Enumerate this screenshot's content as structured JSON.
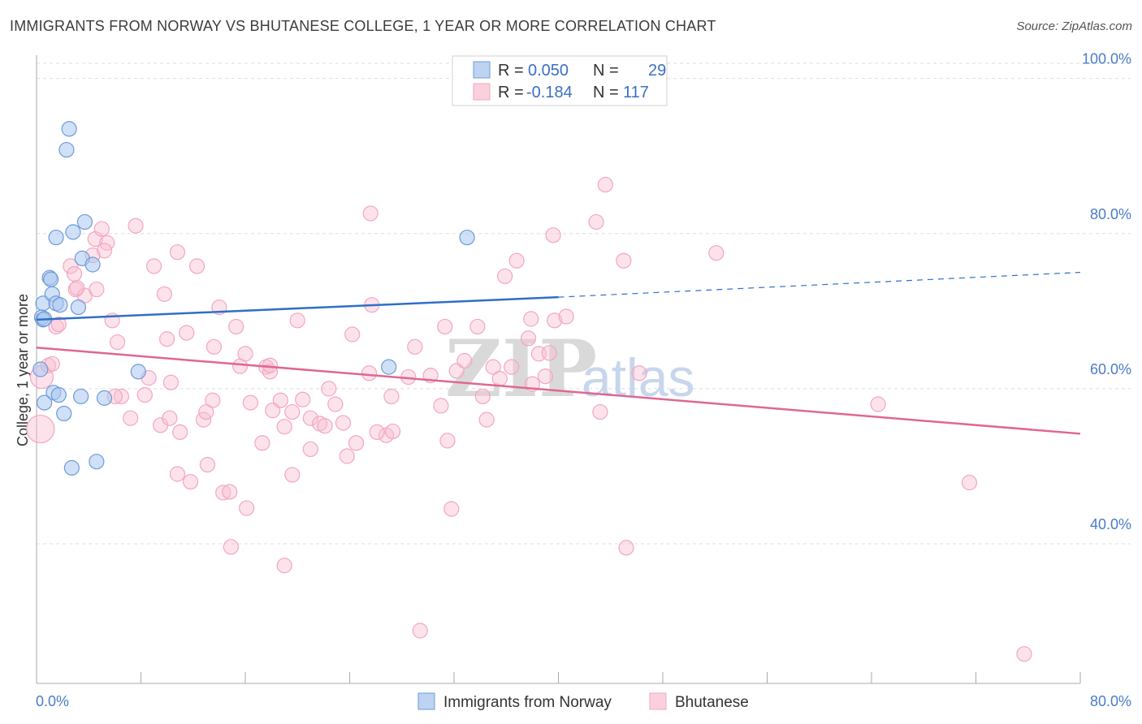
{
  "title": "IMMIGRANTS FROM NORWAY VS BHUTANESE COLLEGE, 1 YEAR OR MORE CORRELATION CHART",
  "source": "Source: ZipAtlas.com",
  "watermark": {
    "zip": "ZIP",
    "atlas": "atlas"
  },
  "legend": {
    "rows": [
      {
        "r_label": "R =",
        "r_value": "0.050",
        "n_label": "N =",
        "n_value": "29"
      },
      {
        "r_label": "R =",
        "r_value": "-0.184",
        "n_label": "N =",
        "n_value": "117"
      }
    ]
  },
  "bottom_legend": [
    "Immigrants from Norway",
    "Bhutanese"
  ],
  "chart_data": {
    "type": "scatter",
    "ylabel": "College, 1 year or more",
    "xlim": [
      0,
      80
    ],
    "ylim": [
      22,
      103
    ],
    "x_tick_labels": [
      "0.0%",
      "80.0%"
    ],
    "y_ticks": [
      40,
      60,
      80,
      100
    ],
    "y_tick_labels": [
      "40.0%",
      "60.0%",
      "80.0%",
      "100.0%"
    ],
    "grid": true,
    "legend_placement": "top-center",
    "colors": {
      "norway": "#6f9bd8",
      "bhutanese": "#f2a7bf",
      "norway_line": "#2f6fc8",
      "bhutanese_line": "#e06693"
    },
    "series": [
      {
        "name": "Immigrants from Norway",
        "color": "#6f9bd8",
        "trend": {
          "x": [
            0,
            40
          ],
          "y": [
            68.9,
            71.8
          ],
          "dashed_to": [
            80,
            75.0
          ]
        },
        "points": [
          [
            2.5,
            93.5
          ],
          [
            2.3,
            90.8
          ],
          [
            0.5,
            71.0
          ],
          [
            0.4,
            69.2
          ],
          [
            0.5,
            68.9
          ],
          [
            0.6,
            69.0
          ],
          [
            1.0,
            74.3
          ],
          [
            1.1,
            74.1
          ],
          [
            1.2,
            72.2
          ],
          [
            1.5,
            71.0
          ],
          [
            1.8,
            70.8
          ],
          [
            3.2,
            70.5
          ],
          [
            1.5,
            79.5
          ],
          [
            2.8,
            80.2
          ],
          [
            3.7,
            81.5
          ],
          [
            3.5,
            76.8
          ],
          [
            4.3,
            76.0
          ],
          [
            1.3,
            59.5
          ],
          [
            1.7,
            59.2
          ],
          [
            3.4,
            59.0
          ],
          [
            5.2,
            58.8
          ],
          [
            0.6,
            58.2
          ],
          [
            2.1,
            56.8
          ],
          [
            7.8,
            62.2
          ],
          [
            27.0,
            62.8
          ],
          [
            33.0,
            79.5
          ],
          [
            2.7,
            49.8
          ],
          [
            4.6,
            50.6
          ],
          [
            0.3,
            62.5
          ]
        ]
      },
      {
        "name": "Bhutanese",
        "color": "#f2a7bf",
        "trend": {
          "x": [
            0,
            80
          ],
          "y": [
            65.3,
            54.2
          ]
        },
        "points": [
          [
            0.3,
            54.8
          ],
          [
            0.4,
            61.5
          ],
          [
            0.9,
            63.0
          ],
          [
            1.2,
            63.2
          ],
          [
            1.5,
            68.0
          ],
          [
            1.7,
            68.3
          ],
          [
            2.6,
            75.8
          ],
          [
            2.9,
            74.8
          ],
          [
            3.0,
            72.8
          ],
          [
            4.5,
            79.3
          ],
          [
            5.0,
            80.6
          ],
          [
            5.4,
            78.8
          ],
          [
            5.2,
            77.8
          ],
          [
            4.3,
            77.2
          ],
          [
            3.7,
            72.0
          ],
          [
            4.6,
            72.8
          ],
          [
            5.8,
            68.8
          ],
          [
            6.2,
            66.0
          ],
          [
            7.6,
            81.0
          ],
          [
            9.0,
            75.8
          ],
          [
            9.8,
            72.2
          ],
          [
            10.0,
            66.4
          ],
          [
            6.5,
            59.0
          ],
          [
            7.2,
            56.2
          ],
          [
            8.3,
            59.2
          ],
          [
            8.6,
            61.4
          ],
          [
            9.5,
            55.3
          ],
          [
            10.2,
            56.2
          ],
          [
            10.3,
            60.8
          ],
          [
            11.0,
            54.4
          ],
          [
            10.8,
            77.6
          ],
          [
            11.5,
            67.2
          ],
          [
            12.3,
            75.8
          ],
          [
            12.8,
            56.0
          ],
          [
            13.5,
            58.5
          ],
          [
            13.1,
            50.2
          ],
          [
            13.6,
            65.4
          ],
          [
            14.0,
            70.5
          ],
          [
            13.0,
            57.0
          ],
          [
            15.3,
            68.0
          ],
          [
            15.6,
            62.9
          ],
          [
            16.0,
            64.5
          ],
          [
            16.4,
            58.2
          ],
          [
            17.3,
            53.0
          ],
          [
            17.6,
            62.8
          ],
          [
            17.9,
            62.2
          ],
          [
            18.1,
            57.2
          ],
          [
            18.7,
            58.5
          ],
          [
            19.0,
            55.1
          ],
          [
            19.6,
            57.0
          ],
          [
            20.0,
            68.8
          ],
          [
            20.4,
            58.6
          ],
          [
            21.0,
            52.2
          ],
          [
            21.0,
            56.2
          ],
          [
            21.7,
            55.5
          ],
          [
            22.1,
            55.2
          ],
          [
            22.4,
            60.0
          ],
          [
            22.9,
            58.0
          ],
          [
            23.5,
            55.6
          ],
          [
            23.8,
            51.3
          ],
          [
            24.2,
            67.0
          ],
          [
            24.5,
            53.0
          ],
          [
            25.5,
            62.0
          ],
          [
            25.7,
            70.8
          ],
          [
            25.6,
            82.6
          ],
          [
            26.8,
            54.0
          ],
          [
            27.2,
            59.0
          ],
          [
            27.3,
            54.5
          ],
          [
            28.5,
            61.5
          ],
          [
            29.0,
            65.4
          ],
          [
            30.2,
            61.7
          ],
          [
            31.0,
            57.8
          ],
          [
            31.3,
            68.0
          ],
          [
            31.5,
            53.3
          ],
          [
            31.8,
            44.5
          ],
          [
            32.2,
            62.3
          ],
          [
            32.8,
            63.6
          ],
          [
            33.8,
            68.0
          ],
          [
            34.2,
            59.0
          ],
          [
            34.5,
            56.0
          ],
          [
            35.0,
            62.8
          ],
          [
            35.5,
            61.3
          ],
          [
            35.9,
            74.5
          ],
          [
            36.4,
            62.8
          ],
          [
            36.8,
            76.5
          ],
          [
            37.7,
            66.5
          ],
          [
            37.9,
            69.0
          ],
          [
            38.0,
            60.6
          ],
          [
            38.5,
            64.5
          ],
          [
            39.0,
            61.6
          ],
          [
            39.3,
            64.6
          ],
          [
            39.6,
            79.8
          ],
          [
            39.7,
            68.8
          ],
          [
            40.6,
            69.3
          ],
          [
            42.9,
            81.5
          ],
          [
            43.2,
            57.0
          ],
          [
            43.6,
            86.3
          ],
          [
            45.0,
            76.5
          ],
          [
            46.2,
            62.0
          ],
          [
            52.1,
            77.5
          ],
          [
            64.5,
            58.0
          ],
          [
            71.5,
            47.9
          ],
          [
            11.8,
            48.0
          ],
          [
            10.8,
            49.0
          ],
          [
            14.3,
            46.6
          ],
          [
            14.8,
            46.7
          ],
          [
            16.1,
            44.6
          ],
          [
            19.0,
            37.2
          ],
          [
            19.6,
            48.9
          ],
          [
            14.9,
            39.6
          ],
          [
            29.4,
            28.8
          ],
          [
            45.2,
            39.5
          ],
          [
            75.7,
            25.8
          ],
          [
            26.1,
            54.4
          ],
          [
            3.1,
            73.0
          ],
          [
            6.0,
            59.0
          ],
          [
            17.9,
            63.0
          ]
        ]
      }
    ]
  }
}
